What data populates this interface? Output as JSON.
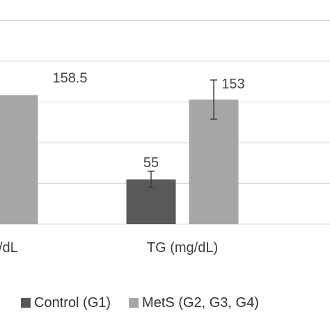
{
  "chart_data": {
    "type": "bar",
    "categories": [
      "(mg/dL)",
      "TG (mg/dL)"
    ],
    "category_labels_shown": [
      "/dL",
      "TG (mg/dL)"
    ],
    "series": [
      {
        "name": "Control (G1)",
        "color": "#595959",
        "values": [
          null,
          55
        ],
        "errors": [
          null,
          10
        ]
      },
      {
        "name": "MetS (G2, G3, G4)",
        "color": "#a6a6a6",
        "values": [
          158.5,
          153
        ],
        "errors": [
          null,
          24
        ]
      }
    ],
    "data_labels": {
      "control": [
        "",
        "55"
      ],
      "mets": [
        "158.5",
        "153"
      ]
    },
    "ylim": [
      0,
      275
    ],
    "gridlines": [
      0,
      50,
      100,
      150,
      200,
      250
    ],
    "grid": true,
    "legend_position": "bottom"
  }
}
